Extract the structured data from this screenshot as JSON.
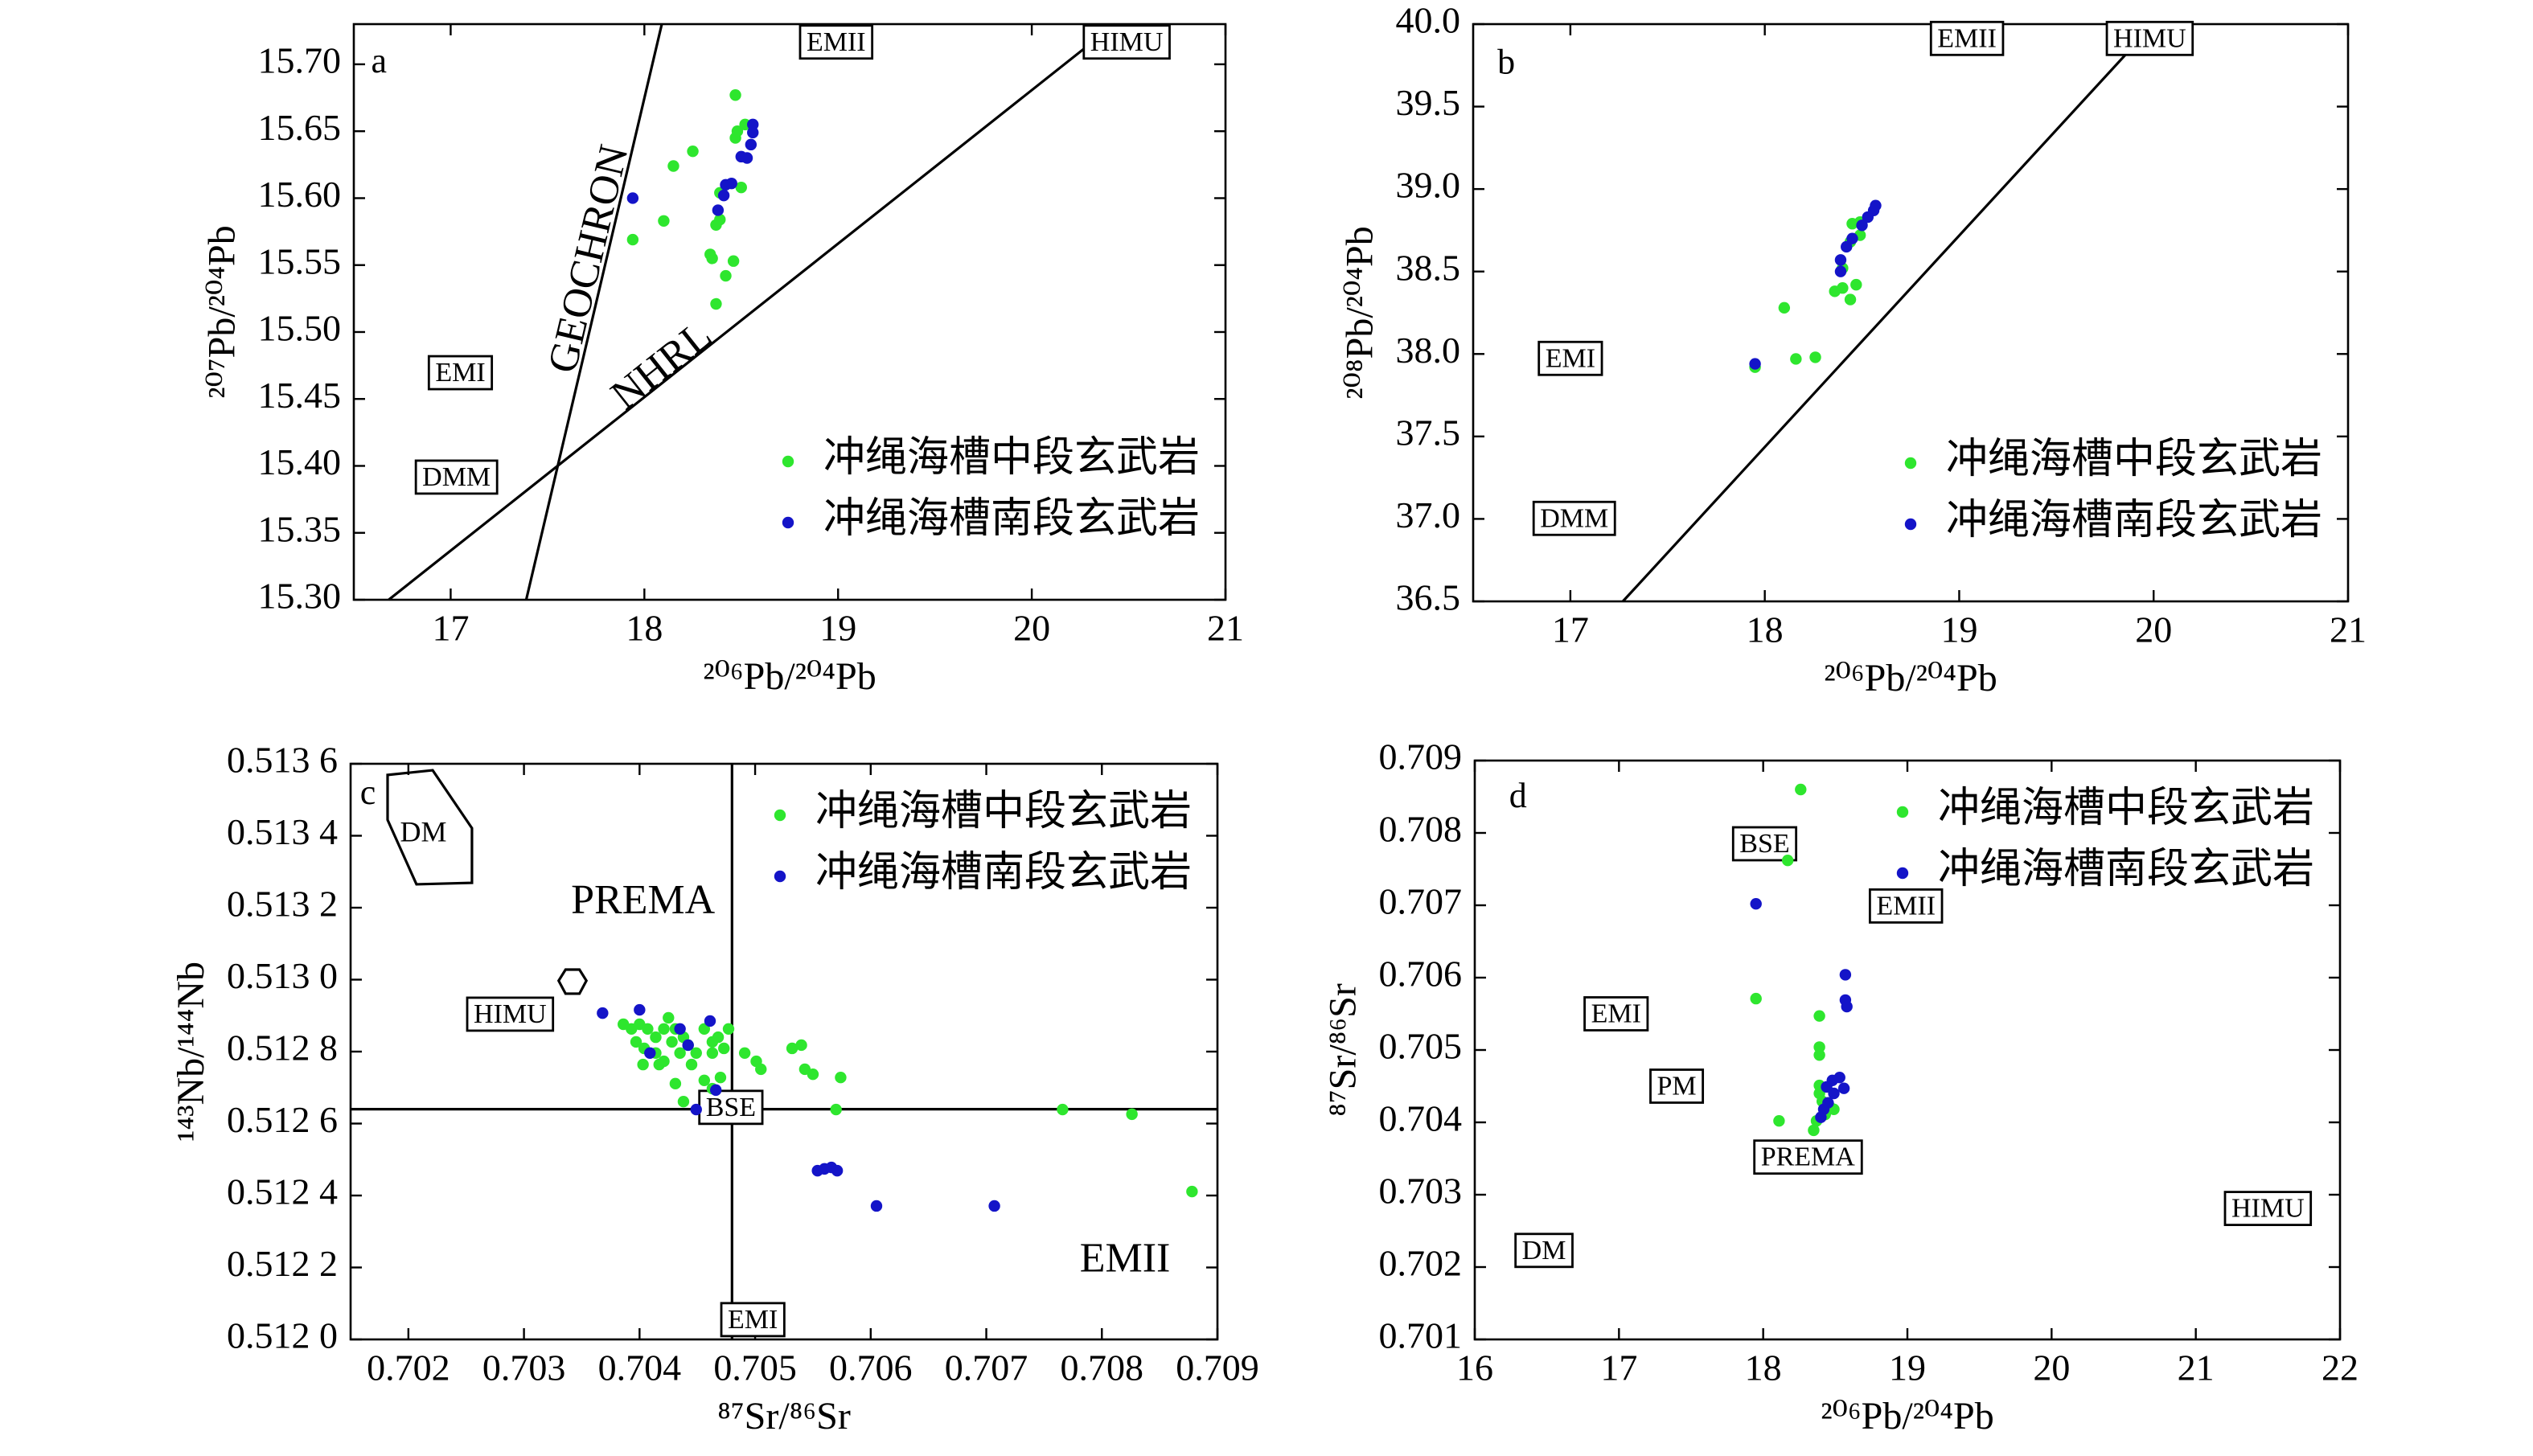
{
  "chart_data": [
    {
      "type": "scatter",
      "xlabel": "²⁰⁶Pb/²⁰⁴Pb",
      "ylabel": "²⁰⁷Pb/²⁰⁴Pb",
      "xlim": [
        16.5,
        21
      ],
      "ylim": [
        15.3,
        15.73
      ],
      "xticks": [
        17,
        18,
        19,
        20,
        21
      ],
      "yticks": [
        {
          "value": 15.3,
          "label": "15.30"
        },
        15.35,
        {
          "value": 15.4,
          "label": "15.40"
        },
        15.45,
        {
          "value": 15.5,
          "label": "15.50"
        },
        15.55,
        {
          "value": 15.6,
          "label": "15.60"
        },
        15.65,
        {
          "value": 15.7,
          "label": "15.70"
        }
      ],
      "legend": "lower right",
      "series": [
        {
          "name": "冲绳海槽中段玄武岩",
          "color": "#2ee62e",
          "x": [
            18.47,
            18.25,
            18.15,
            18.48,
            18.52,
            18.47,
            18.1,
            17.94,
            18.5,
            18.39,
            18.37,
            18.39,
            18.34,
            18.35,
            18.46,
            18.42,
            18.37
          ],
          "y": [
            15.677,
            15.635,
            15.624,
            15.65,
            15.655,
            15.645,
            15.583,
            15.569,
            15.608,
            15.604,
            15.58,
            15.584,
            15.558,
            15.555,
            15.553,
            15.542,
            15.521
          ]
        },
        {
          "name": "冲绳海槽南段玄武岩",
          "color": "#1414c8",
          "x": [
            17.94,
            18.56,
            18.56,
            18.55,
            18.53,
            18.5,
            18.42,
            18.45,
            18.41,
            18.38
          ],
          "y": [
            15.6,
            15.655,
            15.649,
            15.64,
            15.63,
            15.631,
            15.61,
            15.611,
            15.602,
            15.591
          ]
        }
      ],
      "lines": [
        {
          "label": "GEOCHRON",
          "x": [
            17.39,
            18.09
          ],
          "y": [
            15.3,
            15.73
          ],
          "label_x": 17.73,
          "label_y": 15.554
        },
        {
          "label": "NHRL",
          "x": [
            16.68,
            20.43
          ],
          "y": [
            15.3,
            15.73
          ],
          "label_x": 18.1,
          "label_y": 15.473
        }
      ],
      "annotations": [
        {
          "text": "a",
          "x": 16.63,
          "y": 15.7,
          "box": false
        },
        {
          "text": "EMII",
          "x": 18.99,
          "y": 15.715,
          "box": true
        },
        {
          "text": "HIMU",
          "x": 20.49,
          "y": 15.715,
          "box": true
        },
        {
          "text": "EMI",
          "x": 17.05,
          "y": 15.468,
          "box": true
        },
        {
          "text": "DMM",
          "x": 17.03,
          "y": 15.39,
          "box": true
        }
      ]
    },
    {
      "type": "scatter",
      "xlabel": "²⁰⁶Pb/²⁰⁴Pb",
      "ylabel": "²⁰⁸Pb/²⁰⁴Pb",
      "xlim": [
        16.5,
        21
      ],
      "ylim": [
        36.5,
        40
      ],
      "xticks": [
        17,
        18,
        19,
        20,
        21
      ],
      "yticks": [
        36.5,
        {
          "value": 37,
          "label": "37.0"
        },
        37.5,
        {
          "value": 38,
          "label": "38.0"
        },
        38.5,
        {
          "value": 39,
          "label": "39.0"
        },
        39.5,
        {
          "value": 40,
          "label": "40.0"
        }
      ],
      "legend": "lower right",
      "series": [
        {
          "name": "冲绳海槽中段玄武岩",
          "color": "#2ee62e",
          "x": [
            18.45,
            18.49,
            18.44,
            18.49,
            18.4,
            18.36,
            18.4,
            18.47,
            18.44,
            18.1,
            18.16,
            18.26,
            17.95
          ],
          "y": [
            38.79,
            38.8,
            38.68,
            38.72,
            38.52,
            38.38,
            38.4,
            38.42,
            38.33,
            38.28,
            37.97,
            37.98,
            37.92
          ]
        },
        {
          "name": "冲绳海槽南段玄武岩",
          "color": "#1414c8",
          "x": [
            18.57,
            18.56,
            18.53,
            18.5,
            18.45,
            18.42,
            18.39,
            18.39,
            17.95
          ],
          "y": [
            38.9,
            38.87,
            38.83,
            38.78,
            38.7,
            38.65,
            38.57,
            38.5,
            37.94
          ]
        }
      ],
      "lines": [
        {
          "x": [
            17.27,
            20.0
          ],
          "y": [
            36.5,
            40
          ]
        }
      ],
      "annotations": [
        {
          "text": "b",
          "x": 16.67,
          "y": 39.75,
          "box": false
        },
        {
          "text": "EMII",
          "x": 19.04,
          "y": 39.9,
          "box": true
        },
        {
          "text": "HIMU",
          "x": 19.98,
          "y": 39.9,
          "box": true
        },
        {
          "text": "EMI",
          "x": 17.0,
          "y": 37.96,
          "box": true
        },
        {
          "text": "DMM",
          "x": 17.02,
          "y": 36.99,
          "box": true
        }
      ]
    },
    {
      "type": "scatter",
      "xlabel": "⁸⁷Sr/⁸⁶Sr",
      "ylabel": "¹⁴³Nb/¹⁴⁴Nb",
      "xlim": [
        0.7015,
        0.709
      ],
      "ylim": [
        0.512,
        0.5136
      ],
      "xticks": [
        0.702,
        0.703,
        0.704,
        0.705,
        0.706,
        0.707,
        0.708,
        0.709
      ],
      "yticks": [
        {
          "value": 0.512,
          "label": "0.512 0"
        },
        {
          "value": 0.5122,
          "label": "0.512 2"
        },
        {
          "value": 0.5124,
          "label": "0.512 4"
        },
        {
          "value": 0.5126,
          "label": "0.512 6"
        },
        {
          "value": 0.5128,
          "label": "0.512 8"
        },
        {
          "value": 0.513,
          "label": "0.513 0"
        },
        {
          "value": 0.5132,
          "label": "0.513 2"
        },
        {
          "value": 0.5134,
          "label": "0.513 4"
        },
        {
          "value": 0.5136,
          "label": "0.513 6"
        }
      ],
      "legend": "upper right",
      "series": [
        {
          "name": "冲绳海槽中段玄武岩",
          "color": "#2ee62e",
          "x": [
            0.70386,
            0.70393,
            0.704,
            0.70407,
            0.70414,
            0.70421,
            0.70425,
            0.70431,
            0.70438,
            0.70442,
            0.70435,
            0.70397,
            0.70404,
            0.70414,
            0.70421,
            0.70428,
            0.70456,
            0.70463,
            0.70449,
            0.70468,
            0.70477,
            0.70403,
            0.70417,
            0.70445,
            0.70463,
            0.70473,
            0.70456,
            0.70463,
            0.70431,
            0.70438,
            0.7047,
            0.70491,
            0.70501,
            0.70532,
            0.7054,
            0.70543,
            0.70505,
            0.7055,
            0.70574,
            0.7057,
            0.70766,
            0.70826,
            0.70878
          ],
          "y": [
            0.512876,
            0.512863,
            0.512876,
            0.512863,
            0.51284,
            0.512863,
            0.512894,
            0.512863,
            0.51284,
            0.512818,
            0.512796,
            0.512827,
            0.512809,
            0.512796,
            0.512773,
            0.512827,
            0.512863,
            0.512827,
            0.512796,
            0.51284,
            0.512863,
            0.512764,
            0.512764,
            0.512764,
            0.512796,
            0.512809,
            0.51272,
            0.512697,
            0.512711,
            0.512661,
            0.512728,
            0.512796,
            0.512773,
            0.512809,
            0.512818,
            0.512751,
            0.512751,
            0.512737,
            0.512728,
            0.512639,
            0.512639,
            0.512626,
            0.512411
          ]
        },
        {
          "name": "冲绳海槽南段玄武岩",
          "color": "#1414c8",
          "x": [
            0.70368,
            0.704,
            0.70409,
            0.70435,
            0.70442,
            0.70461,
            0.70466,
            0.70449,
            0.70554,
            0.7056,
            0.70566,
            0.70571,
            0.70605,
            0.70707
          ],
          "y": [
            0.512907,
            0.512916,
            0.512796,
            0.512863,
            0.512818,
            0.512885,
            0.512693,
            0.512639,
            0.512469,
            0.512474,
            0.512478,
            0.512469,
            0.512371,
            0.512371
          ]
        }
      ],
      "lines": [
        {
          "x": [
            0.7048,
            0.7048
          ],
          "y": [
            0.512,
            0.5136
          ]
        },
        {
          "x": [
            0.7015,
            0.709
          ],
          "y": [
            0.51264,
            0.51264
          ]
        }
      ],
      "fields": [
        {
          "label": "DM",
          "x": [
            0.70182,
            0.70221,
            0.70255,
            0.70255,
            0.70207,
            0.70182
          ],
          "y": [
            0.513569,
            0.513582,
            0.513421,
            0.513269,
            0.513265,
            0.513444
          ],
          "label_x": 0.70213,
          "label_y": 0.513403
        },
        {
          "x": [
            0.7033,
            0.70336,
            0.70348,
            0.70354,
            0.70348,
            0.70336
          ],
          "y": [
            0.512997,
            0.513028,
            0.513028,
            0.512997,
            0.512961,
            0.512961
          ]
        }
      ],
      "annotations": [
        {
          "text": "c",
          "x": 0.70165,
          "y": 0.513511,
          "box": false
        },
        {
          "text": "PREMA",
          "x": 0.70403,
          "y": 0.513211,
          "box": false
        },
        {
          "text": "HIMU",
          "x": 0.70288,
          "y": 0.512898,
          "box": true
        },
        {
          "text": "BSE",
          "x": 0.70479,
          "y": 0.512639,
          "box": true
        },
        {
          "text": "EMI",
          "x": 0.70498,
          "y": 0.512049,
          "box": true
        },
        {
          "text": "EMII",
          "x": 0.7082,
          "y": 0.512215,
          "box": false
        }
      ]
    },
    {
      "type": "scatter",
      "xlabel": "²⁰⁶Pb/²⁰⁴Pb",
      "ylabel": "⁸⁷Sr/⁸⁶Sr",
      "xlim": [
        16,
        22
      ],
      "ylim": [
        0.701,
        0.709
      ],
      "xticks": [
        16,
        17,
        18,
        19,
        20,
        21,
        22
      ],
      "yticks": [
        0.701,
        0.702,
        0.703,
        0.704,
        0.705,
        0.706,
        0.707,
        0.708,
        0.709
      ],
      "legend": "upper right",
      "series": [
        {
          "name": "冲绳海槽中段玄武岩",
          "color": "#2ee62e",
          "x": [
            18.26,
            18.17,
            17.95,
            18.39,
            18.39,
            18.39,
            18.39,
            18.39,
            18.41,
            18.46,
            18.49,
            18.43,
            18.37,
            18.11,
            18.35
          ],
          "y": [
            0.7086,
            0.70762,
            0.70571,
            0.70547,
            0.70504,
            0.70493,
            0.70451,
            0.7044,
            0.70429,
            0.70422,
            0.70418,
            0.70411,
            0.70402,
            0.70402,
            0.70389
          ]
        },
        {
          "name": "冲绳海槽南段玄武岩",
          "color": "#1414c8",
          "x": [
            17.95,
            18.57,
            18.57,
            18.58,
            18.48,
            18.53,
            18.56,
            18.44,
            18.49,
            18.42,
            18.4,
            18.45
          ],
          "y": [
            0.70702,
            0.70604,
            0.70569,
            0.7056,
            0.70458,
            0.70462,
            0.70447,
            0.70449,
            0.7044,
            0.70418,
            0.70407,
            0.70427
          ]
        }
      ],
      "annotations": [
        {
          "text": "d",
          "x": 16.3,
          "y": 0.70847,
          "box": false
        },
        {
          "text": "BSE",
          "x": 18.01,
          "y": 0.70782,
          "box": true
        },
        {
          "text": "EMII",
          "x": 18.99,
          "y": 0.70696,
          "box": true
        },
        {
          "text": "EMI",
          "x": 16.98,
          "y": 0.70547,
          "box": true
        },
        {
          "text": "PM",
          "x": 17.4,
          "y": 0.70447,
          "box": true
        },
        {
          "text": "PREMA",
          "x": 18.31,
          "y": 0.70349,
          "box": true
        },
        {
          "text": "HIMU",
          "x": 21.5,
          "y": 0.70278,
          "box": true
        },
        {
          "text": "DM",
          "x": 16.48,
          "y": 0.7022,
          "box": true
        }
      ]
    }
  ]
}
